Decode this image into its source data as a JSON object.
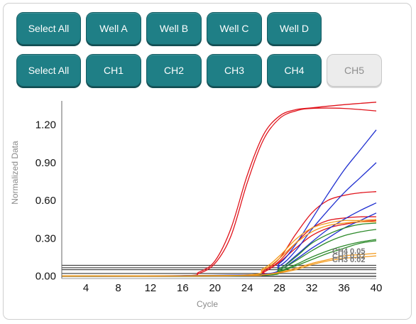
{
  "well_buttons": [
    "Select All",
    "Well A",
    "Well B",
    "Well C",
    "Well D"
  ],
  "channel_buttons": [
    "Select All",
    "CH1",
    "CH2",
    "CH3",
    "CH4",
    "CH5"
  ],
  "colors": {
    "button": "#1f7f86",
    "red": "#e0141c",
    "blue": "#1f2fd0",
    "green": "#2c8a2a",
    "orange": "#f39a1c",
    "black": "#222222"
  },
  "chart_data": {
    "type": "line",
    "xlabel": "Cycle",
    "ylabel": "Normalized Data",
    "x_ticks": [
      4,
      8,
      12,
      16,
      20,
      24,
      28,
      32,
      36,
      40
    ],
    "y_ticks": [
      "0.00",
      "0.30",
      "0.60",
      "0.90",
      "1.20"
    ],
    "xlim": [
      1,
      40
    ],
    "ylim": [
      -0.02,
      1.39
    ],
    "threshold_labels": [
      "CH4 0.05",
      "CH3 0.02"
    ],
    "series": [
      {
        "color": "red",
        "values": [
          [
            1,
            0
          ],
          [
            16,
            0.002
          ],
          [
            18,
            0.03
          ],
          [
            20,
            0.12
          ],
          [
            22,
            0.38
          ],
          [
            24,
            0.8
          ],
          [
            26,
            1.12
          ],
          [
            28,
            1.27
          ],
          [
            30,
            1.32
          ],
          [
            32,
            1.335
          ],
          [
            36,
            1.36
          ],
          [
            40,
            1.38
          ]
        ]
      },
      {
        "color": "red",
        "values": [
          [
            1,
            0
          ],
          [
            16,
            0.002
          ],
          [
            18,
            0.02
          ],
          [
            20,
            0.1
          ],
          [
            22,
            0.32
          ],
          [
            24,
            0.74
          ],
          [
            26,
            1.08
          ],
          [
            28,
            1.25
          ],
          [
            30,
            1.31
          ],
          [
            32,
            1.33
          ],
          [
            36,
            1.33
          ],
          [
            40,
            1.31
          ]
        ]
      },
      {
        "color": "red",
        "values": [
          [
            1,
            0
          ],
          [
            24,
            0.005
          ],
          [
            26,
            0.04
          ],
          [
            28,
            0.14
          ],
          [
            30,
            0.33
          ],
          [
            32,
            0.5
          ],
          [
            34,
            0.6
          ],
          [
            36,
            0.64
          ],
          [
            38,
            0.66
          ],
          [
            40,
            0.67
          ]
        ]
      },
      {
        "color": "red",
        "values": [
          [
            1,
            0
          ],
          [
            24,
            0.003
          ],
          [
            26,
            0.03
          ],
          [
            28,
            0.12
          ],
          [
            30,
            0.26
          ],
          [
            32,
            0.38
          ],
          [
            34,
            0.44
          ],
          [
            36,
            0.46
          ],
          [
            38,
            0.47
          ],
          [
            40,
            0.47
          ]
        ]
      },
      {
        "color": "red",
        "values": [
          [
            1,
            0
          ],
          [
            24,
            0.003
          ],
          [
            26,
            0.03
          ],
          [
            28,
            0.11
          ],
          [
            30,
            0.22
          ],
          [
            32,
            0.32
          ],
          [
            34,
            0.38
          ],
          [
            36,
            0.41
          ],
          [
            38,
            0.43
          ],
          [
            40,
            0.44
          ]
        ]
      },
      {
        "color": "blue",
        "values": [
          [
            1,
            0
          ],
          [
            25,
            0.01
          ],
          [
            28,
            0.1
          ],
          [
            30,
            0.25
          ],
          [
            32,
            0.45
          ],
          [
            34,
            0.65
          ],
          [
            36,
            0.84
          ],
          [
            38,
            1.0
          ],
          [
            40,
            1.16
          ]
        ]
      },
      {
        "color": "blue",
        "values": [
          [
            1,
            0
          ],
          [
            25,
            0.01
          ],
          [
            28,
            0.08
          ],
          [
            30,
            0.2
          ],
          [
            32,
            0.37
          ],
          [
            34,
            0.52
          ],
          [
            36,
            0.66
          ],
          [
            38,
            0.78
          ],
          [
            40,
            0.9
          ]
        ]
      },
      {
        "color": "blue",
        "values": [
          [
            1,
            0
          ],
          [
            25,
            0.01
          ],
          [
            28,
            0.06
          ],
          [
            30,
            0.16
          ],
          [
            32,
            0.27
          ],
          [
            34,
            0.37
          ],
          [
            36,
            0.45
          ],
          [
            38,
            0.52
          ],
          [
            40,
            0.58
          ]
        ]
      },
      {
        "color": "blue",
        "values": [
          [
            1,
            0
          ],
          [
            25,
            0.01
          ],
          [
            28,
            0.05
          ],
          [
            30,
            0.13
          ],
          [
            32,
            0.22
          ],
          [
            34,
            0.3
          ],
          [
            36,
            0.38
          ],
          [
            38,
            0.44
          ],
          [
            40,
            0.5
          ]
        ]
      },
      {
        "color": "green",
        "values": [
          [
            1,
            0
          ],
          [
            25,
            0.005
          ],
          [
            28,
            0.06
          ],
          [
            30,
            0.15
          ],
          [
            32,
            0.26
          ],
          [
            34,
            0.33
          ],
          [
            36,
            0.38
          ],
          [
            38,
            0.41
          ],
          [
            40,
            0.42
          ]
        ]
      },
      {
        "color": "green",
        "values": [
          [
            1,
            0
          ],
          [
            25,
            0.005
          ],
          [
            28,
            0.05
          ],
          [
            30,
            0.12
          ],
          [
            32,
            0.2
          ],
          [
            34,
            0.27
          ],
          [
            36,
            0.32
          ],
          [
            38,
            0.35
          ],
          [
            40,
            0.37
          ]
        ]
      },
      {
        "color": "green",
        "values": [
          [
            1,
            0
          ],
          [
            25,
            0.005
          ],
          [
            28,
            0.04
          ],
          [
            30,
            0.09
          ],
          [
            32,
            0.15
          ],
          [
            34,
            0.2
          ],
          [
            36,
            0.24
          ],
          [
            38,
            0.27
          ],
          [
            40,
            0.29
          ]
        ]
      },
      {
        "color": "green",
        "values": [
          [
            1,
            0
          ],
          [
            25,
            0.005
          ],
          [
            28,
            0.035
          ],
          [
            30,
            0.08
          ],
          [
            32,
            0.13
          ],
          [
            34,
            0.18
          ],
          [
            36,
            0.22
          ],
          [
            38,
            0.26
          ],
          [
            40,
            0.28
          ]
        ]
      },
      {
        "color": "orange",
        "values": [
          [
            1,
            0
          ],
          [
            23,
            0.005
          ],
          [
            26,
            0.06
          ],
          [
            28,
            0.16
          ],
          [
            30,
            0.29
          ],
          [
            32,
            0.38
          ],
          [
            34,
            0.42
          ],
          [
            36,
            0.44
          ],
          [
            38,
            0.44
          ],
          [
            40,
            0.45
          ]
        ]
      },
      {
        "color": "orange",
        "values": [
          [
            1,
            0
          ],
          [
            23,
            0.004
          ],
          [
            26,
            0.05
          ],
          [
            28,
            0.14
          ],
          [
            30,
            0.26
          ],
          [
            32,
            0.35
          ],
          [
            34,
            0.4
          ],
          [
            36,
            0.42
          ],
          [
            38,
            0.43
          ],
          [
            40,
            0.43
          ]
        ]
      },
      {
        "color": "orange",
        "values": [
          [
            1,
            0
          ],
          [
            23,
            0.003
          ],
          [
            26,
            0.01
          ],
          [
            28,
            0.03
          ],
          [
            30,
            0.06
          ],
          [
            32,
            0.1
          ],
          [
            34,
            0.13
          ],
          [
            36,
            0.16
          ],
          [
            38,
            0.17
          ],
          [
            40,
            0.18
          ]
        ]
      },
      {
        "color": "orange",
        "values": [
          [
            1,
            0
          ],
          [
            23,
            0.003
          ],
          [
            26,
            0.01
          ],
          [
            28,
            0.025
          ],
          [
            30,
            0.05
          ],
          [
            32,
            0.09
          ],
          [
            34,
            0.12
          ],
          [
            36,
            0.14
          ],
          [
            38,
            0.15
          ],
          [
            40,
            0.16
          ]
        ]
      }
    ],
    "threshold_lines": [
      0.085,
      0.065,
      0.05,
      0.02,
      0.0,
      -0.005
    ]
  }
}
